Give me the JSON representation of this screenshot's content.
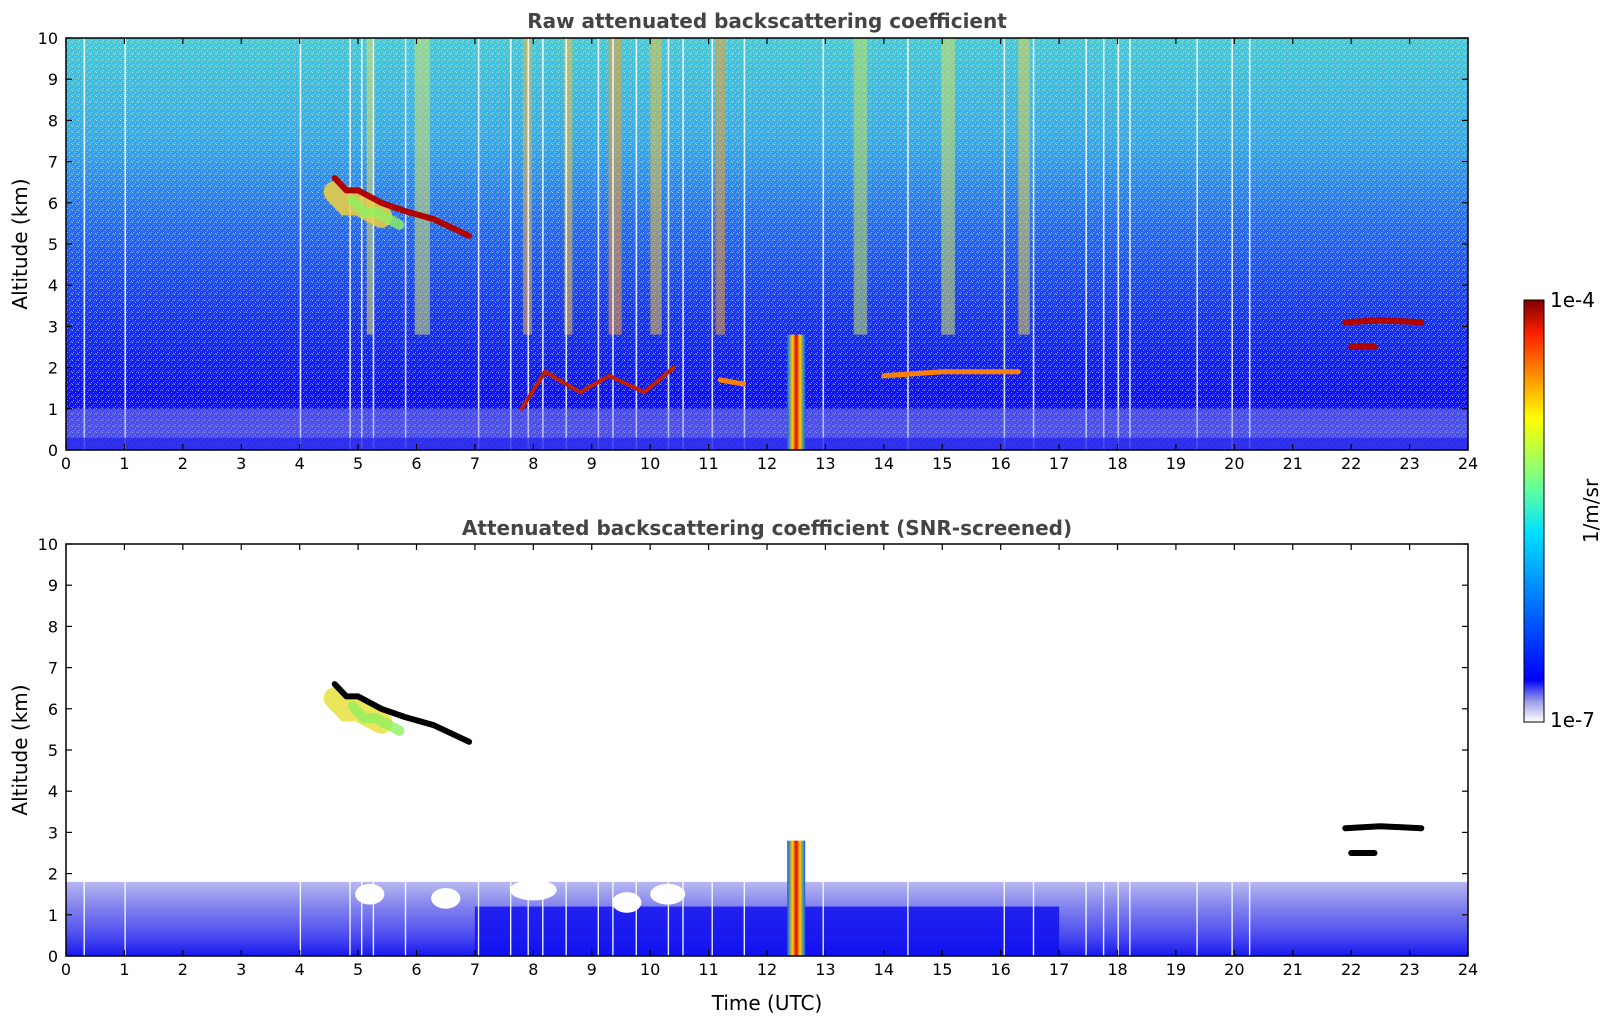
{
  "chart_data": [
    {
      "type": "heatmap",
      "title": "Raw attenuated backscattering coefficient",
      "xlabel": "",
      "ylabel": "Altitude (km)",
      "xlim": [
        0,
        24
      ],
      "ylim": [
        0,
        10
      ],
      "x_ticks": [
        "0",
        "1",
        "2",
        "3",
        "4",
        "5",
        "6",
        "7",
        "8",
        "9",
        "10",
        "11",
        "12",
        "13",
        "14",
        "15",
        "16",
        "17",
        "18",
        "19",
        "20",
        "21",
        "22",
        "23",
        "24"
      ],
      "y_ticks": [
        "0",
        "1",
        "2",
        "3",
        "4",
        "5",
        "6",
        "7",
        "8",
        "9",
        "10"
      ],
      "grid": false,
      "features": [
        {
          "kind": "cloud",
          "t": [
            4.6,
            4.8,
            5.0,
            5.4,
            5.8,
            6.3,
            6.9
          ],
          "alt": [
            6.6,
            6.3,
            6.3,
            6.0,
            5.8,
            5.6,
            5.2
          ],
          "intensity": "high"
        },
        {
          "kind": "aerosol-layer",
          "t": [
            7.8,
            8.2,
            8.8,
            9.3,
            9.9,
            10.4
          ],
          "alt": [
            1.0,
            1.9,
            1.4,
            1.8,
            1.4,
            2.0
          ],
          "intensity": "high"
        },
        {
          "kind": "cloud",
          "t": [
            11.2,
            11.6
          ],
          "alt": [
            1.7,
            1.6
          ],
          "intensity": "medium"
        },
        {
          "kind": "precipitation",
          "t": [
            12.4,
            12.5,
            12.6
          ],
          "alt": [
            2.8,
            1.5,
            0.1
          ],
          "intensity": "high"
        },
        {
          "kind": "cloud",
          "t": [
            14.0,
            15.0,
            16.3
          ],
          "alt": [
            1.8,
            1.9,
            1.9
          ],
          "intensity": "medium"
        },
        {
          "kind": "cloud",
          "t": [
            21.9,
            22.5,
            23.2
          ],
          "alt": [
            3.1,
            3.15,
            3.1
          ],
          "intensity": "high"
        },
        {
          "kind": "cloud",
          "t": [
            22.0,
            22.4
          ],
          "alt": [
            2.5,
            2.5
          ],
          "intensity": "high"
        }
      ]
    },
    {
      "type": "heatmap",
      "title": "Attenuated backscattering coefficient (SNR-screened)",
      "xlabel": "Time (UTC)",
      "ylabel": "Altitude (km)",
      "xlim": [
        0,
        24
      ],
      "ylim": [
        0,
        10
      ],
      "x_ticks": [
        "0",
        "1",
        "2",
        "3",
        "4",
        "5",
        "6",
        "7",
        "8",
        "9",
        "10",
        "11",
        "12",
        "13",
        "14",
        "15",
        "16",
        "17",
        "18",
        "19",
        "20",
        "21",
        "22",
        "23",
        "24"
      ],
      "y_ticks": [
        "0",
        "1",
        "2",
        "3",
        "4",
        "5",
        "6",
        "7",
        "8",
        "9",
        "10"
      ],
      "grid": false,
      "features": [
        {
          "kind": "boundary-layer",
          "t": [
            0,
            24
          ],
          "alt": [
            1.8,
            1.7
          ],
          "intensity": "low"
        },
        {
          "kind": "cloud",
          "t": [
            4.6,
            4.8,
            5.0,
            5.4,
            5.8,
            6.3,
            6.9
          ],
          "alt": [
            6.6,
            6.3,
            6.3,
            6.0,
            5.8,
            5.6,
            5.2
          ],
          "intensity": "high"
        },
        {
          "kind": "precipitation",
          "t": [
            12.4,
            12.5,
            12.6
          ],
          "alt": [
            2.8,
            1.5,
            0.1
          ],
          "intensity": "high"
        },
        {
          "kind": "cloud",
          "t": [
            21.9,
            22.5,
            23.2
          ],
          "alt": [
            3.1,
            3.15,
            3.1
          ],
          "intensity": "high"
        },
        {
          "kind": "cloud",
          "t": [
            22.0,
            22.4
          ],
          "alt": [
            2.5,
            2.5
          ],
          "intensity": "high"
        }
      ]
    }
  ],
  "colorbar": {
    "max_label": "1e-4",
    "min_label": "1e-7",
    "unit_label": "1/m/sr",
    "scale": "log",
    "colors": [
      "#ffffff",
      "#d6d6f6",
      "#9a9ae8",
      "#4f4ff0",
      "#0000ff",
      "#0040ff",
      "#0090ff",
      "#00d8ff",
      "#40ffc0",
      "#80ff80",
      "#c0ff40",
      "#ffff00",
      "#ffb000",
      "#ff5000",
      "#e00000",
      "#800000"
    ]
  }
}
